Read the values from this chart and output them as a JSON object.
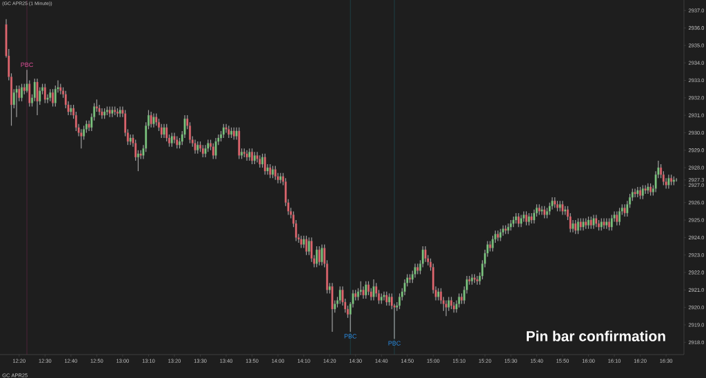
{
  "chart_data": {
    "type": "candlestick",
    "title": "(GC APR25 (1 Minute))",
    "subtitle": "GC APR25",
    "x": [
      12.25,
      12.2667,
      12.2833,
      12.3,
      12.3167,
      12.3333,
      12.35,
      12.3667,
      12.3833,
      12.4,
      12.4167,
      12.4333,
      12.45,
      12.4667,
      12.4833,
      12.5,
      12.5167,
      12.5333,
      12.55,
      12.5667,
      12.5833,
      12.6,
      12.6167,
      12.6333,
      12.65,
      12.6667,
      12.6833,
      12.7,
      12.7167,
      12.7333,
      12.75,
      12.7667,
      12.7833,
      12.8,
      12.8167,
      12.8333,
      12.85,
      12.8667,
      12.8833,
      12.9,
      12.9167,
      12.9333,
      12.95,
      12.9667,
      12.9833,
      13,
      13.0167,
      13.0333,
      13.05,
      13.0667,
      13.0833,
      13.1,
      13.1167,
      13.1333,
      13.15,
      13.1667,
      13.1833,
      13.2,
      13.2167,
      13.2333,
      13.25,
      13.2667,
      13.2833,
      13.3,
      13.3167,
      13.3333,
      13.35,
      13.3667,
      13.3833,
      13.4,
      13.4167,
      13.4333,
      13.45,
      13.4667,
      13.4833,
      13.5,
      13.5167,
      13.5333,
      13.55,
      13.5667,
      13.5833,
      13.6,
      13.6167,
      13.6333,
      13.65,
      13.6667,
      13.6833,
      13.7,
      13.7167,
      13.7333,
      13.75,
      13.7667,
      13.7833,
      13.8,
      13.8167,
      13.8333,
      13.85,
      13.8667,
      13.8833,
      13.9,
      13.9167,
      13.9333,
      13.95,
      13.9667,
      13.9833,
      14,
      14.0167,
      14.0333,
      14.05,
      14.0667,
      14.0833,
      14.1,
      14.1167,
      14.1333,
      14.15,
      14.1667,
      14.1833,
      14.2,
      14.2167,
      14.2333,
      14.25,
      14.2667,
      14.2833,
      14.3,
      14.3167,
      14.3333,
      14.35,
      14.3667,
      14.3833,
      14.4,
      14.4167,
      14.4333,
      14.45,
      14.4667,
      14.4833,
      14.5,
      14.5167,
      14.5333,
      14.55,
      14.5667,
      14.5833,
      14.6,
      14.6167,
      14.6333,
      14.65,
      14.6667,
      14.6833,
      14.7,
      14.7167,
      14.7333,
      14.75,
      14.7667,
      14.7833,
      14.8,
      14.8167,
      14.8333,
      14.85,
      14.8667,
      14.8833,
      14.9,
      14.9167,
      14.9333,
      14.95,
      14.9667,
      14.9833,
      15,
      15.0167,
      15.0333,
      15.05,
      15.0667,
      15.0833,
      15.1,
      15.1167,
      15.1333,
      15.15,
      15.1667,
      15.1833,
      15.2,
      15.2167,
      15.2333,
      15.25,
      15.2667,
      15.2833,
      15.3,
      15.3167,
      15.3333,
      15.35,
      15.3667,
      15.3833,
      15.4,
      15.4167,
      15.4333,
      15.45,
      15.4667,
      15.4833,
      15.5,
      15.5167,
      15.5333,
      15.55,
      15.5667,
      15.5833,
      15.6,
      15.6167,
      15.6333,
      15.65,
      15.6667,
      15.6833,
      15.7,
      15.7167,
      15.7333,
      15.75,
      15.7667,
      15.7833,
      15.8,
      15.8167,
      15.8333,
      15.85,
      15.8667,
      15.8833,
      15.9,
      15.9167,
      15.9333,
      15.95,
      15.9667,
      15.9833,
      16,
      16.0167,
      16.0333,
      16.05,
      16.0667,
      16.0833,
      16.1,
      16.1167,
      16.1333,
      16.15,
      16.1667,
      16.1833,
      16.2,
      16.2167,
      16.2333,
      16.25,
      16.2667,
      16.2833,
      16.3,
      16.3167,
      16.3333,
      16.35,
      16.3667,
      16.3833,
      16.4,
      16.4167,
      16.4333,
      16.45,
      16.4667,
      16.4833,
      16.5,
      16.5167,
      16.5333,
      16.55,
      16.5667
    ],
    "ohlc": [
      [
        2936.2,
        2936.5,
        2934.3,
        2934.4
      ],
      [
        2934.4,
        2934.8,
        2933.0,
        2933.2
      ],
      [
        2933.2,
        2933.4,
        2930.4,
        2931.6
      ],
      [
        2931.6,
        2932.5,
        2931.4,
        2932.3
      ],
      [
        2932.3,
        2932.7,
        2930.9,
        2932.5
      ],
      [
        2932.5,
        2932.7,
        2931.8,
        2932.0
      ],
      [
        2932.0,
        2932.8,
        2931.8,
        2932.6
      ],
      [
        2932.6,
        2932.8,
        2932.2,
        2932.4
      ],
      [
        2932.4,
        2933.6,
        2932.3,
        2932.8
      ],
      [
        2932.8,
        2933.0,
        2931.5,
        2931.7
      ],
      [
        2931.7,
        2932.2,
        2931.5,
        2932.0
      ],
      [
        2932.0,
        2933.1,
        2931.8,
        2932.9
      ],
      [
        2932.9,
        2933.1,
        2931.0,
        2931.8
      ],
      [
        2931.8,
        2932.6,
        2931.6,
        2932.4
      ],
      [
        2932.4,
        2932.8,
        2932.2,
        2932.6
      ],
      [
        2932.6,
        2932.8,
        2931.7,
        2931.9
      ],
      [
        2931.9,
        2932.2,
        2931.7,
        2932.0
      ],
      [
        2932.0,
        2932.5,
        2931.8,
        2932.3
      ],
      [
        2932.3,
        2932.5,
        2931.5,
        2931.7
      ],
      [
        2931.7,
        2932.7,
        2931.5,
        2932.5
      ],
      [
        2932.5,
        2933.0,
        2932.3,
        2932.6
      ],
      [
        2932.6,
        2932.8,
        2932.2,
        2932.4
      ],
      [
        2932.4,
        2932.6,
        2932.0,
        2932.2
      ],
      [
        2932.2,
        2932.4,
        2931.4,
        2931.6
      ],
      [
        2931.6,
        2931.8,
        2931.0,
        2931.2
      ],
      [
        2931.2,
        2931.6,
        2931.0,
        2931.4
      ],
      [
        2931.4,
        2931.6,
        2930.8,
        2931.0
      ],
      [
        2931.0,
        2931.2,
        2930.1,
        2930.3
      ],
      [
        2930.3,
        2930.5,
        2929.8,
        2930.0
      ],
      [
        2930.0,
        2930.2,
        2929.1,
        2929.8
      ],
      [
        2929.8,
        2930.4,
        2929.6,
        2930.2
      ],
      [
        2930.2,
        2930.7,
        2930.0,
        2930.5
      ],
      [
        2930.5,
        2930.7,
        2930.1,
        2930.3
      ],
      [
        2930.3,
        2931.1,
        2930.1,
        2930.9
      ],
      [
        2930.9,
        2931.7,
        2930.7,
        2931.5
      ],
      [
        2931.5,
        2931.9,
        2931.2,
        2931.4
      ],
      [
        2931.4,
        2931.6,
        2931.0,
        2931.2
      ],
      [
        2931.2,
        2931.4,
        2930.8,
        2931.0
      ],
      [
        2931.0,
        2931.4,
        2930.8,
        2931.2
      ],
      [
        2931.2,
        2931.5,
        2931.0,
        2931.3
      ],
      [
        2931.3,
        2931.5,
        2930.9,
        2931.1
      ],
      [
        2931.1,
        2931.5,
        2930.9,
        2931.3
      ],
      [
        2931.3,
        2931.5,
        2931.0,
        2931.2
      ],
      [
        2931.2,
        2931.4,
        2930.9,
        2931.1
      ],
      [
        2931.1,
        2931.5,
        2930.9,
        2931.3
      ],
      [
        2931.3,
        2931.5,
        2930.9,
        2931.1
      ],
      [
        2931.1,
        2931.3,
        2929.8,
        2930.0
      ],
      [
        2930.0,
        2930.2,
        2929.3,
        2929.5
      ],
      [
        2929.5,
        2929.9,
        2929.3,
        2929.7
      ],
      [
        2929.7,
        2929.9,
        2929.2,
        2929.4
      ],
      [
        2929.4,
        2929.6,
        2928.4,
        2928.6
      ],
      [
        2928.6,
        2929.0,
        2927.8,
        2928.8
      ],
      [
        2928.8,
        2929.0,
        2928.5,
        2928.7
      ],
      [
        2928.7,
        2929.3,
        2928.5,
        2929.1
      ],
      [
        2929.1,
        2930.6,
        2928.9,
        2930.4
      ],
      [
        2930.4,
        2931.3,
        2930.2,
        2931.0
      ],
      [
        2931.0,
        2931.2,
        2930.3,
        2930.5
      ],
      [
        2930.5,
        2931.1,
        2930.3,
        2930.9
      ],
      [
        2930.9,
        2931.1,
        2930.4,
        2930.6
      ],
      [
        2930.6,
        2930.8,
        2930.1,
        2930.3
      ],
      [
        2930.3,
        2930.5,
        2929.7,
        2929.9
      ],
      [
        2929.9,
        2930.5,
        2929.7,
        2930.3
      ],
      [
        2930.3,
        2930.5,
        2929.5,
        2929.7
      ],
      [
        2929.7,
        2929.9,
        2929.2,
        2929.4
      ],
      [
        2929.4,
        2930.0,
        2929.2,
        2929.8
      ],
      [
        2929.8,
        2930.0,
        2929.4,
        2929.6
      ],
      [
        2929.6,
        2929.8,
        2929.1,
        2929.3
      ],
      [
        2929.3,
        2929.7,
        2929.1,
        2929.5
      ],
      [
        2929.5,
        2930.1,
        2929.3,
        2929.9
      ],
      [
        2929.9,
        2931.0,
        2929.7,
        2930.8
      ],
      [
        2930.8,
        2931.0,
        2930.2,
        2930.4
      ],
      [
        2930.4,
        2930.6,
        2929.4,
        2929.6
      ],
      [
        2929.6,
        2929.8,
        2929.2,
        2929.4
      ],
      [
        2929.4,
        2929.6,
        2928.8,
        2929.0
      ],
      [
        2929.0,
        2929.5,
        2928.8,
        2929.3
      ],
      [
        2929.3,
        2929.5,
        2928.9,
        2929.1
      ],
      [
        2929.1,
        2929.3,
        2928.6,
        2928.8
      ],
      [
        2928.8,
        2929.3,
        2928.6,
        2929.1
      ],
      [
        2929.1,
        2929.6,
        2928.9,
        2929.4
      ],
      [
        2929.4,
        2929.6,
        2929.0,
        2929.2
      ],
      [
        2929.2,
        2929.4,
        2928.5,
        2928.7
      ],
      [
        2928.7,
        2929.7,
        2928.5,
        2929.5
      ],
      [
        2929.5,
        2929.9,
        2929.3,
        2929.7
      ],
      [
        2929.7,
        2930.1,
        2929.5,
        2929.9
      ],
      [
        2929.9,
        2930.5,
        2929.7,
        2930.3
      ],
      [
        2930.3,
        2930.5,
        2930.0,
        2930.2
      ],
      [
        2930.2,
        2930.4,
        2929.7,
        2929.9
      ],
      [
        2929.9,
        2930.3,
        2929.7,
        2930.1
      ],
      [
        2930.1,
        2930.3,
        2929.6,
        2929.8
      ],
      [
        2929.8,
        2930.3,
        2929.6,
        2930.1
      ],
      [
        2930.1,
        2930.3,
        2928.5,
        2928.7
      ],
      [
        2928.7,
        2929.1,
        2928.5,
        2928.9
      ],
      [
        2928.9,
        2929.1,
        2928.6,
        2928.8
      ],
      [
        2928.8,
        2929.0,
        2928.4,
        2928.6
      ],
      [
        2928.6,
        2929.1,
        2928.4,
        2928.9
      ],
      [
        2928.9,
        2929.1,
        2928.2,
        2928.4
      ],
      [
        2928.4,
        2928.9,
        2928.2,
        2928.7
      ],
      [
        2928.7,
        2928.9,
        2928.3,
        2928.5
      ],
      [
        2928.5,
        2928.7,
        2928.0,
        2928.2
      ],
      [
        2928.2,
        2928.8,
        2928.0,
        2928.6
      ],
      [
        2928.6,
        2928.8,
        2927.6,
        2927.8
      ],
      [
        2927.8,
        2928.2,
        2927.6,
        2928.0
      ],
      [
        2928.0,
        2928.2,
        2927.4,
        2927.6
      ],
      [
        2927.6,
        2928.1,
        2927.4,
        2927.9
      ],
      [
        2927.9,
        2928.1,
        2927.3,
        2927.5
      ],
      [
        2927.5,
        2927.7,
        2927.1,
        2927.3
      ],
      [
        2927.3,
        2927.7,
        2927.1,
        2927.5
      ],
      [
        2927.5,
        2927.7,
        2927.0,
        2927.2
      ],
      [
        2927.2,
        2927.4,
        2925.8,
        2926.0
      ],
      [
        2926.0,
        2926.2,
        2925.3,
        2925.5
      ],
      [
        2925.5,
        2925.7,
        2925.1,
        2925.3
      ],
      [
        2925.3,
        2925.5,
        2924.6,
        2924.8
      ],
      [
        2924.8,
        2925.0,
        2923.8,
        2924.0
      ],
      [
        2924.0,
        2924.2,
        2923.7,
        2923.9
      ],
      [
        2923.9,
        2924.1,
        2923.4,
        2923.6
      ],
      [
        2923.6,
        2924.1,
        2923.4,
        2923.9
      ],
      [
        2923.9,
        2924.1,
        2923.0,
        2923.2
      ],
      [
        2923.2,
        2924.0,
        2923.0,
        2923.8
      ],
      [
        2923.8,
        2924.0,
        2922.6,
        2922.8
      ],
      [
        2922.8,
        2923.0,
        2922.3,
        2922.5
      ],
      [
        2922.5,
        2923.5,
        2922.3,
        2923.3
      ],
      [
        2923.3,
        2923.5,
        2922.4,
        2922.6
      ],
      [
        2922.6,
        2923.6,
        2922.4,
        2923.4
      ],
      [
        2923.4,
        2923.6,
        2922.3,
        2922.5
      ],
      [
        2922.5,
        2922.7,
        2920.8,
        2921.0
      ],
      [
        2921.0,
        2921.4,
        2920.8,
        2921.2
      ],
      [
        2921.2,
        2921.4,
        2918.6,
        2919.9
      ],
      [
        2919.9,
        2920.4,
        2919.7,
        2920.2
      ],
      [
        2920.2,
        2920.6,
        2920.0,
        2920.4
      ],
      [
        2920.4,
        2921.2,
        2920.2,
        2921.0
      ],
      [
        2921.0,
        2921.2,
        2920.1,
        2920.3
      ],
      [
        2920.3,
        2920.5,
        2919.7,
        2919.9
      ],
      [
        2919.9,
        2920.1,
        2919.4,
        2919.6
      ],
      [
        2919.6,
        2920.3,
        2918.6,
        2920.2
      ],
      [
        2920.2,
        2921.0,
        2920.0,
        2920.8
      ],
      [
        2920.8,
        2921.0,
        2920.4,
        2920.6
      ],
      [
        2920.6,
        2921.1,
        2920.4,
        2920.9
      ],
      [
        2920.9,
        2921.5,
        2920.7,
        2921.0
      ],
      [
        2921.0,
        2921.2,
        2920.5,
        2920.7
      ],
      [
        2920.7,
        2921.5,
        2920.5,
        2921.3
      ],
      [
        2921.3,
        2921.5,
        2920.7,
        2920.9
      ],
      [
        2920.9,
        2921.1,
        2920.4,
        2920.6
      ],
      [
        2920.6,
        2921.6,
        2920.4,
        2921.2
      ],
      [
        2921.2,
        2921.4,
        2920.6,
        2920.8
      ],
      [
        2920.8,
        2921.0,
        2920.2,
        2920.4
      ],
      [
        2920.4,
        2920.8,
        2920.2,
        2920.6
      ],
      [
        2920.6,
        2920.9,
        2920.4,
        2920.7
      ],
      [
        2920.7,
        2920.9,
        2920.1,
        2920.3
      ],
      [
        2920.3,
        2920.8,
        2920.1,
        2920.6
      ],
      [
        2920.6,
        2920.8,
        2919.9,
        2920.1
      ],
      [
        2920.1,
        2920.2,
        2918.2,
        2920.0
      ],
      [
        2920.0,
        2920.3,
        2919.8,
        2920.1
      ],
      [
        2920.1,
        2920.8,
        2919.9,
        2920.6
      ],
      [
        2920.6,
        2921.1,
        2920.4,
        2920.9
      ],
      [
        2920.9,
        2921.6,
        2920.7,
        2921.4
      ],
      [
        2921.4,
        2921.9,
        2921.2,
        2921.7
      ],
      [
        2921.7,
        2921.9,
        2921.4,
        2921.6
      ],
      [
        2921.6,
        2922.1,
        2921.4,
        2921.9
      ],
      [
        2921.9,
        2922.5,
        2921.7,
        2922.3
      ],
      [
        2922.3,
        2922.5,
        2921.9,
        2922.1
      ],
      [
        2922.1,
        2922.7,
        2921.9,
        2922.5
      ],
      [
        2922.5,
        2923.5,
        2922.3,
        2923.3
      ],
      [
        2923.3,
        2923.5,
        2922.6,
        2922.8
      ],
      [
        2922.8,
        2923.0,
        2922.4,
        2922.6
      ],
      [
        2922.6,
        2922.8,
        2922.1,
        2922.3
      ],
      [
        2922.3,
        2922.5,
        2920.8,
        2921.0
      ],
      [
        2921.0,
        2921.2,
        2920.4,
        2920.6
      ],
      [
        2920.6,
        2921.1,
        2920.4,
        2920.9
      ],
      [
        2920.9,
        2921.1,
        2920.2,
        2920.4
      ],
      [
        2920.4,
        2920.6,
        2919.8,
        2920.2
      ],
      [
        2920.2,
        2920.4,
        2919.5,
        2920.0
      ],
      [
        2920.0,
        2920.6,
        2919.8,
        2920.4
      ],
      [
        2920.4,
        2920.6,
        2919.9,
        2920.1
      ],
      [
        2920.1,
        2920.3,
        2919.7,
        2919.9
      ],
      [
        2919.9,
        2920.4,
        2919.7,
        2920.2
      ],
      [
        2920.2,
        2920.8,
        2920.0,
        2920.6
      ],
      [
        2920.6,
        2920.8,
        2920.2,
        2920.4
      ],
      [
        2920.4,
        2921.2,
        2920.2,
        2921.0
      ],
      [
        2921.0,
        2921.8,
        2920.8,
        2921.6
      ],
      [
        2921.6,
        2921.8,
        2921.3,
        2921.5
      ],
      [
        2921.5,
        2921.9,
        2921.3,
        2921.7
      ],
      [
        2921.7,
        2921.9,
        2921.4,
        2921.6
      ],
      [
        2921.6,
        2921.8,
        2921.3,
        2921.5
      ],
      [
        2921.5,
        2922.0,
        2921.3,
        2921.8
      ],
      [
        2921.8,
        2922.7,
        2921.6,
        2922.5
      ],
      [
        2922.5,
        2923.3,
        2922.3,
        2923.1
      ],
      [
        2923.1,
        2923.8,
        2922.9,
        2923.6
      ],
      [
        2923.6,
        2923.8,
        2923.2,
        2923.4
      ],
      [
        2923.4,
        2924.1,
        2923.2,
        2923.9
      ],
      [
        2923.9,
        2924.4,
        2923.7,
        2924.2
      ],
      [
        2924.2,
        2924.4,
        2923.8,
        2924.0
      ],
      [
        2924.0,
        2924.5,
        2923.8,
        2924.3
      ],
      [
        2924.3,
        2924.7,
        2924.1,
        2924.5
      ],
      [
        2924.5,
        2924.7,
        2924.2,
        2924.4
      ],
      [
        2924.4,
        2924.8,
        2924.2,
        2924.6
      ],
      [
        2924.6,
        2925.0,
        2924.4,
        2924.8
      ],
      [
        2924.8,
        2925.2,
        2924.6,
        2925.0
      ],
      [
        2925.0,
        2925.4,
        2924.8,
        2925.2
      ],
      [
        2925.2,
        2925.4,
        2924.6,
        2924.8
      ],
      [
        2924.8,
        2925.3,
        2924.6,
        2925.1
      ],
      [
        2925.1,
        2925.5,
        2924.9,
        2925.3
      ],
      [
        2925.3,
        2925.5,
        2924.7,
        2924.9
      ],
      [
        2924.9,
        2925.4,
        2924.7,
        2925.2
      ],
      [
        2925.2,
        2925.4,
        2924.8,
        2925.0
      ],
      [
        2925.0,
        2925.6,
        2924.8,
        2925.4
      ],
      [
        2925.4,
        2925.9,
        2925.2,
        2925.7
      ],
      [
        2925.7,
        2925.9,
        2925.3,
        2925.5
      ],
      [
        2925.5,
        2925.8,
        2925.3,
        2925.6
      ],
      [
        2925.6,
        2925.8,
        2925.1,
        2925.3
      ],
      [
        2925.3,
        2925.7,
        2925.1,
        2925.5
      ],
      [
        2925.5,
        2926.0,
        2925.3,
        2925.8
      ],
      [
        2925.8,
        2926.3,
        2925.6,
        2926.1
      ],
      [
        2926.1,
        2926.3,
        2925.7,
        2925.9
      ],
      [
        2925.9,
        2926.1,
        2925.5,
        2925.7
      ],
      [
        2925.7,
        2926.1,
        2925.5,
        2925.9
      ],
      [
        2925.9,
        2926.1,
        2925.3,
        2925.5
      ],
      [
        2925.5,
        2925.8,
        2925.3,
        2925.6
      ],
      [
        2925.6,
        2925.8,
        2925.0,
        2925.2
      ],
      [
        2925.2,
        2925.4,
        2924.3,
        2924.5
      ],
      [
        2924.5,
        2925.0,
        2924.3,
        2924.8
      ],
      [
        2924.8,
        2925.0,
        2924.2,
        2924.4
      ],
      [
        2924.4,
        2925.1,
        2924.2,
        2924.9
      ],
      [
        2924.9,
        2925.1,
        2924.4,
        2924.6
      ],
      [
        2924.6,
        2925.1,
        2924.4,
        2924.9
      ],
      [
        2924.9,
        2925.1,
        2924.5,
        2924.7
      ],
      [
        2924.7,
        2925.2,
        2924.5,
        2925.0
      ],
      [
        2925.0,
        2925.2,
        2924.5,
        2924.7
      ],
      [
        2924.7,
        2925.3,
        2924.5,
        2925.1
      ],
      [
        2925.1,
        2925.3,
        2924.6,
        2924.8
      ],
      [
        2924.8,
        2925.0,
        2924.4,
        2924.6
      ],
      [
        2924.6,
        2925.1,
        2924.4,
        2924.9
      ],
      [
        2924.9,
        2925.1,
        2924.5,
        2924.7
      ],
      [
        2924.7,
        2925.1,
        2924.5,
        2924.9
      ],
      [
        2924.9,
        2925.1,
        2924.4,
        2924.6
      ],
      [
        2924.6,
        2925.3,
        2924.4,
        2925.1
      ],
      [
        2925.1,
        2925.5,
        2924.9,
        2925.3
      ],
      [
        2925.3,
        2925.5,
        2924.7,
        2924.9
      ],
      [
        2924.9,
        2925.7,
        2924.7,
        2925.5
      ],
      [
        2925.5,
        2925.9,
        2925.3,
        2925.7
      ],
      [
        2925.7,
        2925.9,
        2925.2,
        2925.4
      ],
      [
        2925.4,
        2926.1,
        2925.2,
        2925.9
      ],
      [
        2925.9,
        2926.5,
        2925.7,
        2926.3
      ],
      [
        2926.3,
        2926.8,
        2926.1,
        2926.6
      ],
      [
        2926.6,
        2926.8,
        2926.3,
        2926.5
      ],
      [
        2926.5,
        2926.9,
        2926.3,
        2926.7
      ],
      [
        2926.7,
        2926.9,
        2926.2,
        2926.4
      ],
      [
        2926.4,
        2927.0,
        2926.2,
        2926.8
      ],
      [
        2926.8,
        2927.0,
        2926.5,
        2926.7
      ],
      [
        2926.7,
        2927.1,
        2926.5,
        2926.9
      ],
      [
        2926.9,
        2927.1,
        2926.4,
        2926.6
      ],
      [
        2926.6,
        2927.0,
        2926.4,
        2926.8
      ],
      [
        2926.8,
        2927.8,
        2926.6,
        2927.6
      ],
      [
        2927.6,
        2928.4,
        2927.4,
        2928.0
      ],
      [
        2928.0,
        2928.2,
        2927.4,
        2927.6
      ],
      [
        2927.6,
        2927.8,
        2927.0,
        2927.2
      ],
      [
        2927.2,
        2927.4,
        2926.8,
        2927.0
      ],
      [
        2927.0,
        2927.6,
        2926.8,
        2927.4
      ],
      [
        2927.4,
        2927.6,
        2927.0,
        2927.2
      ],
      [
        2927.2,
        2927.5,
        2927.0,
        2927.3
      ],
      [
        2927.3,
        2927.4,
        2927.2,
        2927.3
      ]
    ],
    "xlim": [
      12.21,
      16.615
    ],
    "ylim": [
      2917.3,
      2937.6
    ],
    "xticks": [
      {
        "value": 12.3333,
        "label": "12:20"
      },
      {
        "value": 12.5,
        "label": "12:30"
      },
      {
        "value": 12.6667,
        "label": "12:40"
      },
      {
        "value": 12.8333,
        "label": "12:50"
      },
      {
        "value": 13,
        "label": "13:00"
      },
      {
        "value": 13.1667,
        "label": "13:10"
      },
      {
        "value": 13.3333,
        "label": "13:20"
      },
      {
        "value": 13.5,
        "label": "13:30"
      },
      {
        "value": 13.6667,
        "label": "13:40"
      },
      {
        "value": 13.8333,
        "label": "13:50"
      },
      {
        "value": 14,
        "label": "14:00"
      },
      {
        "value": 14.1667,
        "label": "14:10"
      },
      {
        "value": 14.3333,
        "label": "14:20"
      },
      {
        "value": 14.5,
        "label": "14:30"
      },
      {
        "value": 14.6667,
        "label": "14:40"
      },
      {
        "value": 14.8333,
        "label": "14:50"
      },
      {
        "value": 15,
        "label": "15:00"
      },
      {
        "value": 15.1667,
        "label": "15:10"
      },
      {
        "value": 15.3333,
        "label": "15:20"
      },
      {
        "value": 15.5,
        "label": "15:30"
      },
      {
        "value": 15.6667,
        "label": "15:40"
      },
      {
        "value": 15.8333,
        "label": "15:50"
      },
      {
        "value": 16,
        "label": "16:00"
      },
      {
        "value": 16.1667,
        "label": "16:10"
      },
      {
        "value": 16.3333,
        "label": "16:20"
      },
      {
        "value": 16.5,
        "label": "16:30"
      }
    ],
    "yticks": [
      {
        "value": 2918,
        "label": "2918.0"
      },
      {
        "value": 2919,
        "label": "2919.0"
      },
      {
        "value": 2920,
        "label": "2920.0"
      },
      {
        "value": 2921,
        "label": "2921.0"
      },
      {
        "value": 2922,
        "label": "2922.0"
      },
      {
        "value": 2923,
        "label": "2923.0"
      },
      {
        "value": 2924,
        "label": "2924.0"
      },
      {
        "value": 2925,
        "label": "2925.0"
      },
      {
        "value": 2926,
        "label": "2926.0"
      },
      {
        "value": 2927,
        "label": "2927.0"
      },
      {
        "value": 2927.3,
        "label": "2927.3"
      },
      {
        "value": 2928,
        "label": "2928.0"
      },
      {
        "value": 2929,
        "label": "2929.0"
      },
      {
        "value": 2930,
        "label": "2930.0"
      },
      {
        "value": 2931,
        "label": "2931.0"
      },
      {
        "value": 2932,
        "label": "2932.0"
      },
      {
        "value": 2933,
        "label": "2933.0"
      },
      {
        "value": 2934,
        "label": "2934.0"
      },
      {
        "value": 2935,
        "label": "2935.0"
      },
      {
        "value": 2936,
        "label": "2936.0"
      },
      {
        "value": 2937,
        "label": "2937.0"
      }
    ],
    "ref_lines": [
      {
        "axis": "x",
        "value": 12.3833,
        "color": "#6e2a4e"
      },
      {
        "axis": "x",
        "value": 14.4667,
        "color": "#1d5560"
      },
      {
        "axis": "x",
        "value": 14.75,
        "color": "#1d5560"
      }
    ],
    "annotations": [
      {
        "text": "PBC",
        "x": 12.3833,
        "y": 2933.6
      },
      {
        "text": "PBC",
        "x": 14.4667,
        "y": 2918.6
      },
      {
        "text": "PBC",
        "x": 14.75,
        "y": 2918.2
      },
      "Pin bar confirmation"
    ]
  }
}
